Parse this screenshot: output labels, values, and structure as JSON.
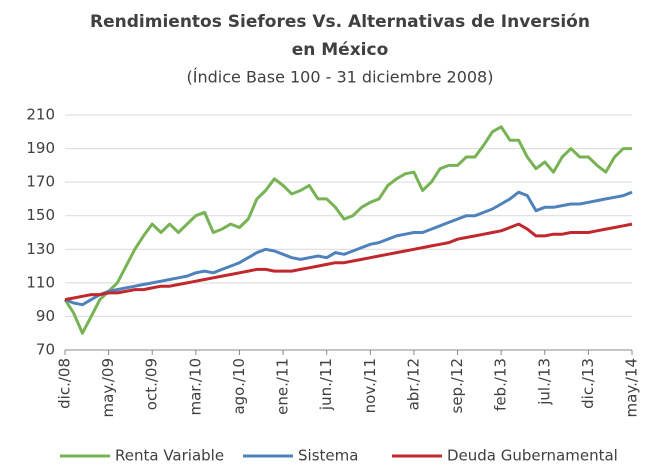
{
  "chart_data": {
    "type": "line",
    "title": [
      "Rendimientos Siefores Vs. Alternativas de Inversión",
      "en México"
    ],
    "subtitle": "(Índice Base 100 - 31 diciembre 2008)",
    "categories": [
      "dic./08",
      null,
      null,
      null,
      null,
      "may./09",
      null,
      null,
      null,
      null,
      "oct./09",
      null,
      null,
      null,
      null,
      "mar./10",
      null,
      null,
      null,
      null,
      "ago./10",
      null,
      null,
      null,
      null,
      "ene./11",
      null,
      null,
      null,
      null,
      "jun./11",
      null,
      null,
      null,
      null,
      "nov./11",
      null,
      null,
      null,
      null,
      "abr./12",
      null,
      null,
      null,
      null,
      "sep./12",
      null,
      null,
      null,
      null,
      "feb./13",
      null,
      null,
      null,
      null,
      "jul./13",
      null,
      null,
      null,
      null,
      "dic./13",
      null,
      null,
      null,
      null,
      "may./14"
    ],
    "series": [
      {
        "name": "Renta Variable",
        "color": "#77b255",
        "values": [
          100,
          92,
          80,
          90,
          100,
          105,
          110,
          120,
          130,
          138,
          145,
          140,
          145,
          140,
          145,
          150,
          152,
          140,
          142,
          145,
          143,
          148,
          160,
          165,
          172,
          168,
          163,
          165,
          168,
          160,
          160,
          155,
          148,
          150,
          155,
          158,
          160,
          168,
          172,
          175,
          176,
          165,
          170,
          178,
          180,
          180,
          185,
          185,
          192,
          200,
          203,
          195,
          195,
          185,
          178,
          182,
          176,
          185,
          190,
          185,
          185,
          180,
          176,
          185,
          190,
          190
        ]
      },
      {
        "name": "Sistema",
        "color": "#4f81bd",
        "values": [
          100,
          98,
          97,
          100,
          103,
          105,
          106,
          107,
          108,
          109,
          110,
          111,
          112,
          113,
          114,
          116,
          117,
          116,
          118,
          120,
          122,
          125,
          128,
          130,
          129,
          127,
          125,
          124,
          125,
          126,
          125,
          128,
          127,
          129,
          131,
          133,
          134,
          136,
          138,
          139,
          140,
          140,
          142,
          144,
          146,
          148,
          150,
          150,
          152,
          154,
          157,
          160,
          164,
          162,
          153,
          155,
          155,
          156,
          157,
          157,
          158,
          159,
          160,
          161,
          162,
          164
        ]
      },
      {
        "name": "Deuda Gubernamental",
        "color": "#c0282d",
        "values": [
          100,
          101,
          102,
          103,
          103,
          104,
          104,
          105,
          106,
          106,
          107,
          108,
          108,
          109,
          110,
          111,
          112,
          113,
          114,
          115,
          116,
          117,
          118,
          118,
          117,
          117,
          117,
          118,
          119,
          120,
          121,
          122,
          122,
          123,
          124,
          125,
          126,
          127,
          128,
          129,
          130,
          131,
          132,
          133,
          134,
          136,
          137,
          138,
          139,
          140,
          141,
          143,
          145,
          142,
          138,
          138,
          139,
          139,
          140,
          140,
          140,
          141,
          142,
          143,
          144,
          145
        ]
      }
    ],
    "ylim": [
      70,
      210
    ],
    "yticks": [
      70,
      90,
      110,
      130,
      150,
      170,
      190,
      210
    ],
    "grid": true,
    "legend": "bottom"
  }
}
